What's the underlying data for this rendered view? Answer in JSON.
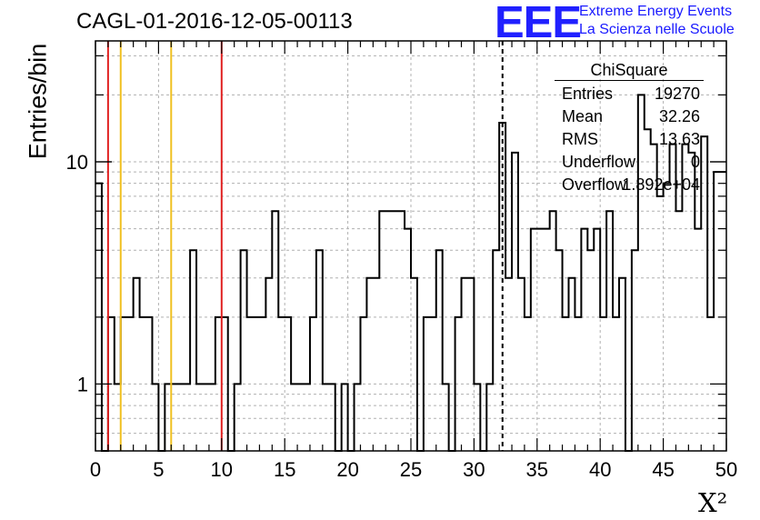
{
  "header": {
    "title": "CAGL-01-2016-12-05-00113",
    "logo_text": "EEE",
    "org_line1": "Extreme Energy Events",
    "org_line2": "La Scienza nelle Scuole",
    "logo_color": "#2020ff"
  },
  "stats": {
    "title": "ChiSquare",
    "rows": [
      {
        "key": "Entries",
        "value": "19270"
      },
      {
        "key": "Mean",
        "value": "32.26"
      },
      {
        "key": "RMS",
        "value": "13.63"
      },
      {
        "key": "Underflow",
        "value": "0"
      },
      {
        "key": "Overflow",
        "value": "1.892e+04"
      }
    ]
  },
  "chart_data": {
    "type": "histogram",
    "title": "CAGL-01-2016-12-05-00113",
    "xlabel": "X²",
    "ylabel": "Entries/bin",
    "xlim": [
      0,
      50
    ],
    "ylim": [
      0.5,
      35
    ],
    "y_scale": "log",
    "bin_width": 0.5,
    "grid": true,
    "x_ticks": [
      "0",
      "5",
      "10",
      "15",
      "20",
      "25",
      "30",
      "35",
      "40",
      "45",
      "50"
    ],
    "y_ticks": [
      "1",
      "10"
    ],
    "counts": [
      8,
      0,
      2,
      1,
      2,
      2,
      3,
      2,
      2,
      1,
      0,
      1,
      1,
      1,
      1,
      4,
      1,
      1,
      1,
      2,
      2,
      0,
      1,
      4,
      2,
      2,
      2,
      3,
      6,
      2,
      2,
      1,
      1,
      1,
      2,
      4,
      1,
      1,
      0,
      1,
      0,
      1,
      2,
      3,
      3,
      6,
      6,
      6,
      6,
      5,
      3,
      0,
      2,
      2,
      4,
      1,
      0,
      2,
      3,
      3,
      1,
      0,
      1,
      4,
      15,
      3,
      11,
      3,
      2,
      5,
      5,
      5,
      6,
      4,
      2,
      3,
      2,
      5,
      4,
      5,
      2,
      6,
      2,
      3,
      0,
      4,
      20,
      14,
      12,
      7,
      8,
      12,
      6,
      12,
      11,
      5,
      13,
      2,
      9,
      9
    ],
    "vertical_lines": [
      {
        "x": 1,
        "color": "#e02020"
      },
      {
        "x": 2,
        "color": "#f0c020"
      },
      {
        "x": 6,
        "color": "#f0c020"
      },
      {
        "x": 10,
        "color": "#e02020"
      },
      {
        "x": 32.26,
        "color": "#000000",
        "dashed": true
      }
    ]
  }
}
